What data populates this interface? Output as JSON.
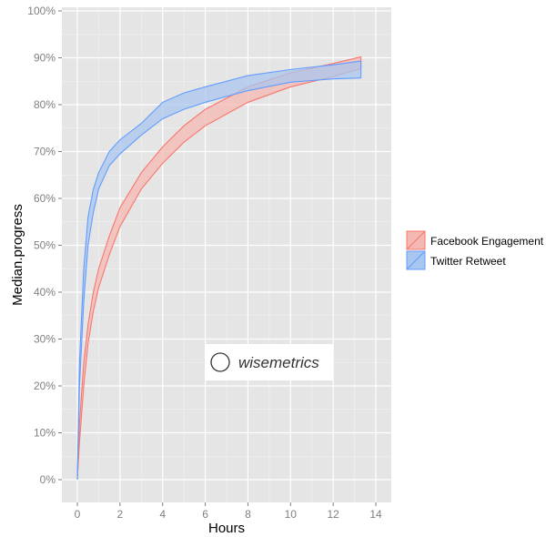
{
  "chart_data": {
    "type": "area",
    "title": "",
    "xlabel": "Hours",
    "ylabel": "Median.progress",
    "xlim": [
      -0.75,
      14.75
    ],
    "ylim": [
      -5,
      104
    ],
    "x_ticks": [
      0,
      2,
      4,
      6,
      8,
      10,
      12,
      14
    ],
    "y_ticks": [
      "0%",
      "10%",
      "20%",
      "30%",
      "40%",
      "50%",
      "60%",
      "70%",
      "80%",
      "90%",
      "100%"
    ],
    "grid": true,
    "legend_position": "right",
    "watermark": "wisemetrics",
    "series": [
      {
        "name": "Facebook Engagement",
        "color": "#f8766d",
        "fill": "#f4b8b3",
        "x": [
          0,
          0.1,
          0.3,
          0.5,
          0.75,
          1,
          1.5,
          2,
          3,
          4,
          5,
          6,
          8,
          10,
          12,
          13.3
        ],
        "lower": [
          0,
          8,
          20,
          29,
          36,
          41,
          48,
          54,
          62,
          67.5,
          72,
          75.5,
          80.5,
          83.8,
          86,
          87.7
        ],
        "upper": [
          0,
          12,
          25,
          33,
          40,
          45,
          52,
          58,
          65.5,
          71,
          75.5,
          79,
          83.8,
          86.8,
          88.8,
          90.2
        ]
      },
      {
        "name": "Twitter Retweet",
        "color": "#619cff",
        "fill": "#a9c6ee",
        "x": [
          0,
          0.1,
          0.3,
          0.5,
          0.75,
          1,
          1.5,
          2,
          3,
          4,
          5,
          6,
          8,
          10,
          12,
          13.3
        ],
        "lower": [
          0,
          20,
          38,
          50,
          57,
          62,
          67,
          69.5,
          73.5,
          77,
          79,
          80.5,
          83,
          84.8,
          85.5,
          85.7
        ],
        "upper": [
          0,
          25,
          45,
          56,
          62,
          65.5,
          70,
          72.5,
          76,
          80.5,
          82.5,
          83.8,
          86.2,
          87.5,
          88.5,
          89.3
        ]
      }
    ]
  }
}
